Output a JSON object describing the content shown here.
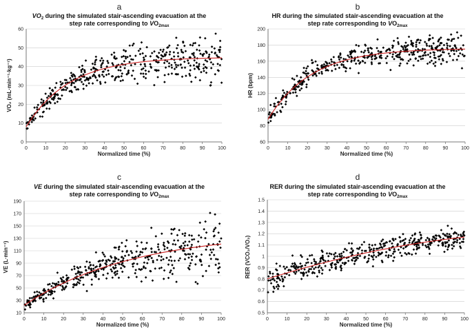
{
  "figure": {
    "panels_description": "Four scatter plots with fitted curves",
    "dot_color": "#000000",
    "curve_color": "#cc2222",
    "grid_color": "#cccccc"
  },
  "chart_data": [
    {
      "id": "a",
      "type": "scatter",
      "letter": "a",
      "title_line1_pre": "V",
      "title_line1_italic": "O",
      "title_line1_sub": "2",
      "title_line1_rest": " during the simulated stair-ascending evacuation at the",
      "title_line2_pre": "step rate corresponding to ",
      "title_line2_italic": "V",
      "title_line2_rest": "O",
      "title_line2_sub": "2max",
      "ylabel": "VO₂ (mL·min⁻¹·kg⁻¹)",
      "xlabel": "Normalized time (%)",
      "xlim": [
        0,
        100
      ],
      "ylim": [
        0,
        60
      ],
      "xticks": [
        "0",
        "10",
        "20",
        "30",
        "40",
        "50",
        "60",
        "70",
        "80",
        "90",
        "100"
      ],
      "yticks": [
        "0",
        "10",
        "20",
        "30",
        "40",
        "50",
        "60"
      ],
      "fit": {
        "model": "y = a - b*exp(-x/c)",
        "a": 45,
        "b": 37,
        "c": 22
      },
      "scatter": {
        "n": 450,
        "spread_start": 3,
        "spread_end": 9
      }
    },
    {
      "id": "b",
      "type": "scatter",
      "letter": "b",
      "title_line1": "HR during the simulated stair-ascending evacuation at the",
      "title_line2_pre": "step rate corresponding to ",
      "title_line2_italic": "V",
      "title_line2_rest": "O",
      "title_line2_sub": "2max",
      "ylabel": "HR (bpm)",
      "xlabel": "Normalized time (%)",
      "xlim": [
        0,
        100
      ],
      "ylim": [
        60,
        200
      ],
      "xticks": [
        "0",
        "10",
        "20",
        "30",
        "40",
        "50",
        "60",
        "70",
        "80",
        "90",
        "100"
      ],
      "yticks": [
        "60",
        "80",
        "100",
        "120",
        "140",
        "160",
        "180",
        "200"
      ],
      "fit": {
        "model": "y = a - b*exp(-x/c)",
        "a": 176,
        "b": 88,
        "c": 22
      },
      "scatter": {
        "n": 450,
        "spread_start": 8,
        "spread_end": 14
      }
    },
    {
      "id": "c",
      "type": "scatter",
      "letter": "c",
      "title_line1_italic": "VE",
      "title_line1_rest": " during the simulated stair-ascending evacuation at the",
      "title_line2_pre": "step rate corresponding to ",
      "title_line2_italic": "V",
      "title_line2_rest": "O",
      "title_line2_sub": "2max",
      "ylabel": "VE (L·min⁻¹)",
      "xlabel": "Normalized time (%)",
      "xlim": [
        0,
        100
      ],
      "ylim": [
        10,
        190
      ],
      "xticks": [
        "0",
        "10",
        "20",
        "30",
        "40",
        "50",
        "60",
        "70",
        "80",
        "90",
        "100"
      ],
      "yticks": [
        "10",
        "30",
        "50",
        "70",
        "90",
        "110",
        "130",
        "150",
        "170",
        "190"
      ],
      "fit": {
        "model": "y = a - b*exp(-x/c)",
        "a": 140,
        "b": 118,
        "c": 55
      },
      "scatter": {
        "n": 450,
        "spread_start": 5,
        "spread_end": 35
      }
    },
    {
      "id": "d",
      "type": "scatter",
      "letter": "d",
      "title_line1": "RER during the simulated stair-ascending evacuation at the",
      "title_line2_pre": "step rate corresponding to ",
      "title_line2_italic": "V",
      "title_line2_rest": "O",
      "title_line2_sub": "2max",
      "ylabel": "RER (VCO₂/VO₂)",
      "xlabel": "Normalized time (%)",
      "xlim": [
        0,
        100
      ],
      "ylim": [
        0.5,
        1.5
      ],
      "xticks": [
        "0",
        "10",
        "20",
        "30",
        "40",
        "50",
        "60",
        "70",
        "80",
        "90",
        "100"
      ],
      "yticks": [
        "0.5",
        "0.6",
        "0.7",
        "0.8",
        "0.9",
        "1",
        "1.1",
        "1.2",
        "1.3",
        "1.4",
        "1.5"
      ],
      "fit": {
        "model": "y = a + b*x + c*x^2",
        "a": 0.8,
        "b": 0.0055,
        "c": -1.8e-05
      },
      "scatter": {
        "n": 450,
        "spread_start": 0.08,
        "spread_end": 0.06
      }
    }
  ]
}
